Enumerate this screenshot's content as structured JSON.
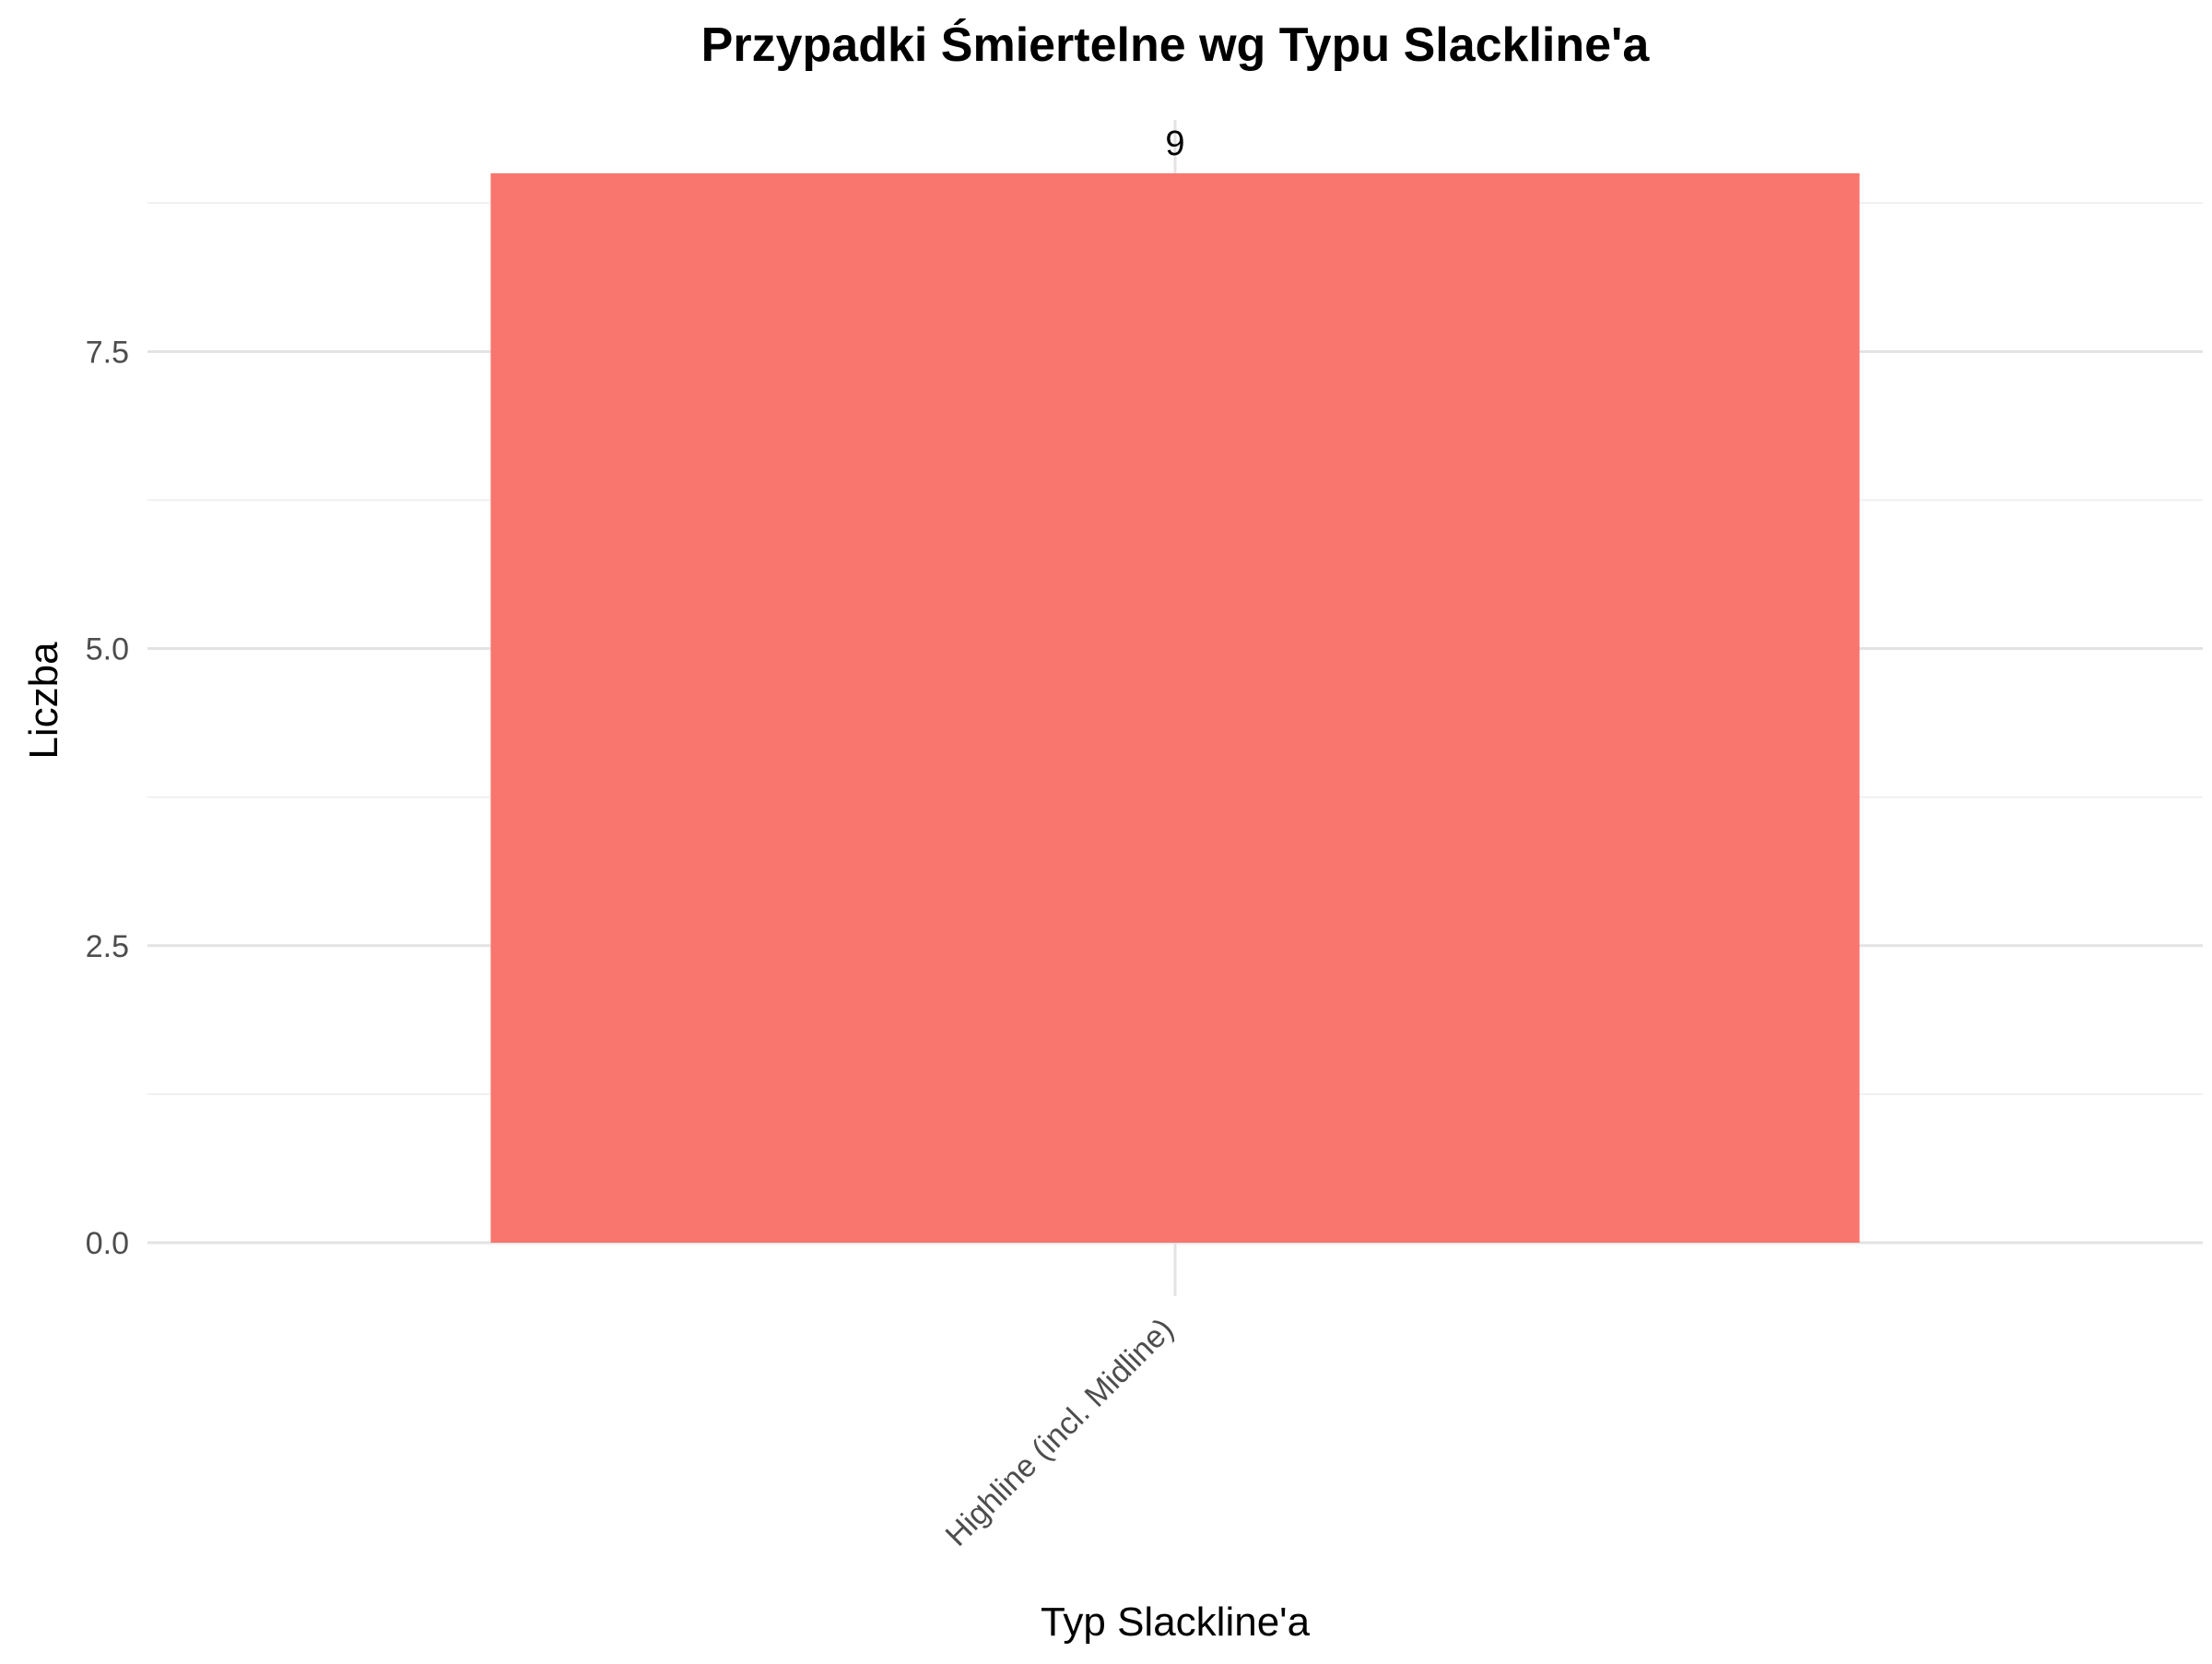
{
  "chart_data": {
    "type": "bar",
    "title": "Przypadki Śmiertelne wg Typu Slackline'a",
    "xlabel": "Typ Slackline'a",
    "ylabel": "Liczba",
    "categories": [
      "Highline (incl. Midline)"
    ],
    "values": [
      9
    ],
    "data_labels": [
      "9"
    ],
    "ylim": [
      0,
      9.45
    ],
    "yticks": [
      0,
      2.5,
      5,
      7.5
    ],
    "ytick_labels": [
      "0.0",
      "2.5",
      "5.0",
      "7.5"
    ],
    "minor_yticks": [
      1.25,
      3.75,
      6.25,
      8.75
    ],
    "bar_color": "#F8766D",
    "grid": true,
    "legend": "none",
    "x_tick_rotation_deg": 45
  }
}
